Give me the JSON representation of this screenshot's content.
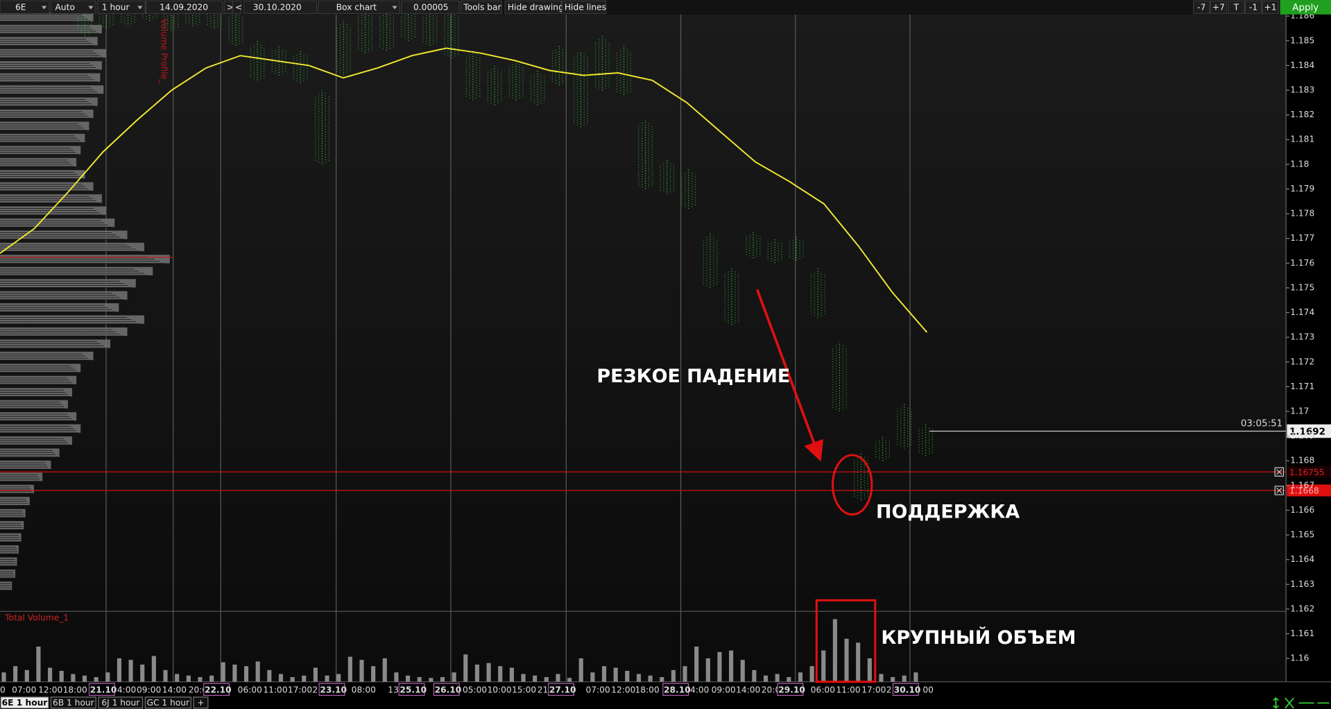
{
  "toolbar": {
    "symbol": "6E",
    "scale_mode": "Auto",
    "timeframe": "1 hour",
    "date_from": "14.09.2020",
    "next": ">",
    "prev": "<",
    "date_to": "30.10.2020",
    "chart_type": "Box chart",
    "tick_size": "0.00005",
    "tools_bar": "Tools bar",
    "hide_drawing": "Hide drawing",
    "hide_lines": "Hide lines",
    "shift_buttons": [
      "-7",
      "+7",
      "T",
      "-1",
      "+1"
    ],
    "apply": "Apply"
  },
  "chart": {
    "yticks": [
      1.186,
      1.185,
      1.184,
      1.183,
      1.182,
      1.181,
      1.18,
      1.179,
      1.178,
      1.177,
      1.176,
      1.175,
      1.174,
      1.173,
      1.172,
      1.171,
      1.17,
      1.169,
      1.168,
      1.167,
      1.166,
      1.165,
      1.164,
      1.163,
      1.162,
      1.161,
      1.16
    ],
    "current_price": 1.1692,
    "countdown": "03:05:51",
    "levels": [
      1.16755,
      1.1668
    ],
    "volume_profile_label": "Volume Profile_",
    "volume_profile": [
      110,
      120,
      115,
      125,
      120,
      118,
      122,
      115,
      110,
      105,
      100,
      95,
      90,
      100,
      110,
      120,
      125,
      135,
      150,
      170,
      200,
      180,
      160,
      150,
      140,
      170,
      150,
      130,
      110,
      95,
      90,
      85,
      80,
      90,
      95,
      85,
      70,
      60,
      50,
      40,
      35,
      30,
      28,
      25,
      22,
      20,
      18,
      14
    ],
    "moving_average": [
      1.1764,
      1.1774,
      1.1789,
      1.1805,
      1.1818,
      1.183,
      1.1839,
      1.1844,
      1.1842,
      1.184,
      1.1835,
      1.1839,
      1.1844,
      1.1847,
      1.1845,
      1.1842,
      1.1838,
      1.1836,
      1.1837,
      1.1834,
      1.1825,
      1.1813,
      1.1801,
      1.1793,
      1.1784,
      1.1767,
      1.1748,
      1.1732
    ],
    "price_bars": [
      [
        1.1852,
        1.1866
      ],
      [
        1.1855,
        1.1866
      ],
      [
        1.1856,
        1.1866
      ],
      [
        1.1858,
        1.1866
      ],
      [
        1.1854,
        1.1866
      ],
      [
        1.1856,
        1.1866
      ],
      [
        1.1855,
        1.1866
      ],
      [
        1.1848,
        1.1862
      ],
      [
        1.1834,
        1.185
      ],
      [
        1.1836,
        1.1848
      ],
      [
        1.1833,
        1.1846
      ],
      [
        1.18,
        1.183
      ],
      [
        1.1836,
        1.1858
      ],
      [
        1.1845,
        1.1866
      ],
      [
        1.1846,
        1.1864
      ],
      [
        1.185,
        1.1866
      ],
      [
        1.1848,
        1.1866
      ],
      [
        1.1843,
        1.1866
      ],
      [
        1.1826,
        1.1846
      ],
      [
        1.1824,
        1.184
      ],
      [
        1.1826,
        1.1842
      ],
      [
        1.1824,
        1.1838
      ],
      [
        1.1832,
        1.1848
      ],
      [
        1.1815,
        1.1846
      ],
      [
        1.183,
        1.1852
      ],
      [
        1.1828,
        1.1848
      ],
      [
        1.179,
        1.1818
      ],
      [
        1.1788,
        1.1802
      ],
      [
        1.1782,
        1.1798
      ],
      [
        1.175,
        1.1772
      ],
      [
        1.1735,
        1.1758
      ],
      [
        1.1762,
        1.1773
      ],
      [
        1.176,
        1.177
      ],
      [
        1.1761,
        1.1771
      ],
      [
        1.1738,
        1.1758
      ],
      [
        1.17,
        1.1728
      ],
      [
        1.1664,
        1.1683
      ],
      [
        1.168,
        1.169
      ],
      [
        1.1685,
        1.1703
      ],
      [
        1.1682,
        1.1695
      ]
    ],
    "volume_label": "Total Volume_1",
    "volume_ylim": [
      0,
      90
    ],
    "volume": [
      12,
      20,
      15,
      45,
      18,
      14,
      10,
      8,
      6,
      12,
      30,
      28,
      22,
      33,
      15,
      10,
      8,
      6,
      8,
      25,
      22,
      20,
      26,
      15,
      10,
      6,
      8,
      18,
      8,
      10,
      32,
      28,
      20,
      30,
      12,
      8,
      6,
      5,
      6,
      12,
      35,
      22,
      24,
      20,
      18,
      10,
      8,
      6,
      10,
      5,
      30,
      12,
      20,
      18,
      14,
      10,
      8,
      6,
      15,
      20,
      45,
      30,
      38,
      40,
      28,
      15,
      8,
      10,
      6,
      12,
      20,
      40,
      80,
      55,
      50,
      30,
      10,
      6,
      8,
      12
    ],
    "time_axis": [
      "0",
      "07:00",
      "12:00",
      "18:00",
      "21.10",
      "4:00",
      "09:00",
      "14:00",
      "20:0",
      "22.10",
      "06:00",
      "11:00",
      "17:00",
      "2",
      "23.10",
      "08:00",
      "13:",
      "25.10",
      "26.10",
      "05:00",
      "10:00",
      "15:00",
      "21:",
      "27.10",
      "07:00",
      "12:00",
      "18:00",
      "28.10",
      "4:00",
      "09:00",
      "14:00",
      "20:0",
      "29.10",
      "06:00",
      "11:00",
      "17:00",
      "2",
      "30.10",
      "00"
    ]
  },
  "annotations": [
    "РЕЗКОЕ ПАДЕНИЕ",
    "ПОДДЕРЖКА",
    "КРУПНЫЙ ОБЪЕМ"
  ],
  "tabs": [
    "6E 1 hour",
    "6B 1 hour",
    "6J 1 hour",
    "GC 1 hour",
    "+"
  ]
}
